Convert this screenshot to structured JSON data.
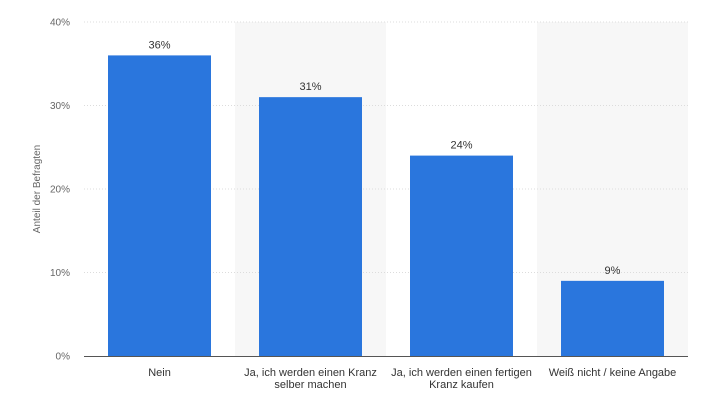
{
  "chart_data": {
    "type": "bar",
    "title": "",
    "xlabel": "",
    "ylabel": "Anteil der Befragten",
    "ylim": [
      0,
      40
    ],
    "yticks": [
      "0%",
      "10%",
      "20%",
      "30%",
      "40%"
    ],
    "grid": true,
    "categories": [
      [
        "Nein"
      ],
      [
        "Ja, ich werden einen Kranz",
        "selber machen"
      ],
      [
        "Ja, ich werden einen fertigen",
        "Kranz kaufen"
      ],
      [
        "Weiß nicht / keine Angabe"
      ]
    ],
    "values": [
      36,
      31,
      24,
      9
    ],
    "value_labels": [
      "36%",
      "31%",
      "24%",
      "9%"
    ],
    "colors": {
      "bar": "#2a76dd",
      "band": "#f7f7f7",
      "grid": "#dcdcdc",
      "axis": "#555555"
    }
  }
}
